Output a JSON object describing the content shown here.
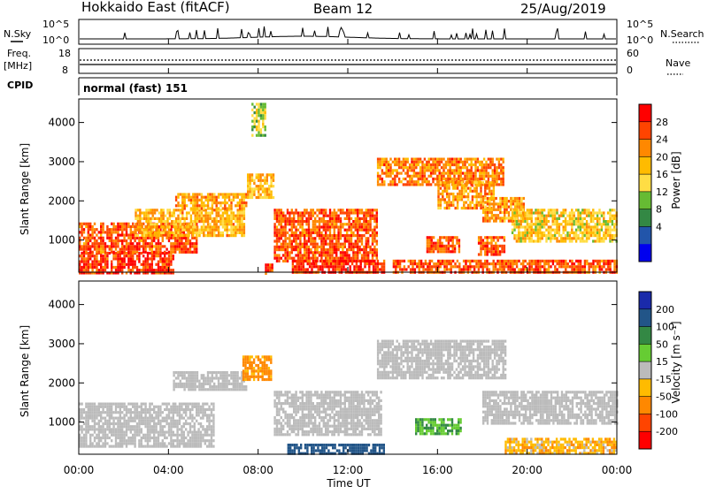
{
  "header": {
    "title": "Hokkaido East (fitACF)",
    "beam": "Beam 12",
    "date": "25/Aug/2019"
  },
  "aux_panels": {
    "nsky_label": "N.Sky",
    "nsky_ticks": [
      "10^5",
      "10^0"
    ],
    "nsky_right_ticks": [
      "10^5",
      "10^0"
    ],
    "nsearch_label": "N.Search",
    "freq_label": "Freq.",
    "freq_unit": "[MHz]",
    "freq_ticks": [
      "18",
      "8"
    ],
    "nave_ticks": [
      "60",
      "0"
    ],
    "nave_label": "Nave",
    "cpid_label": "CPID",
    "cpid_text": "normal (fast) 151"
  },
  "axes": {
    "ylabel": "Slant Range [km]",
    "y_ticks": [
      "4000",
      "3000",
      "2000",
      "1000"
    ],
    "x_ticks": [
      "00:00",
      "04:00",
      "08:00",
      "12:00",
      "16:00",
      "20:00",
      "00:00"
    ],
    "xlabel": "Time UT"
  },
  "power_scale": {
    "label": "Power [dB]",
    "ticks": [
      "28",
      "24",
      "20",
      "16",
      "12",
      "8",
      "4"
    ],
    "colors": [
      "#ff0000",
      "#ff4400",
      "#ff8800",
      "#ffbb00",
      "#ffdd44",
      "#66bb33",
      "#338844",
      "#2255aa",
      "#0000ee"
    ]
  },
  "velocity_scale": {
    "label": "Velocity [m s⁻¹]",
    "ticks": [
      "200",
      "100",
      "50",
      "15",
      "-15",
      "-50",
      "-100",
      "-200"
    ],
    "colors": [
      "#1a2aaa",
      "#225588",
      "#338844",
      "#66cc33",
      "#bbbbbb",
      "#ffbb00",
      "#ff8800",
      "#ff4400",
      "#ff0000"
    ]
  },
  "chart_data": {
    "type": "heatmap",
    "x_range_hours": [
      0,
      24
    ],
    "y_range_km": [
      180,
      4600
    ],
    "nsky_log_range": [
      0,
      5
    ],
    "power_regions": [
      {
        "t0": 0.0,
        "t1": 4.2,
        "r0": 180,
        "r1": 700,
        "value": 28
      },
      {
        "t0": 0.0,
        "t1": 5.3,
        "r0": 700,
        "r1": 1450,
        "value": 26
      },
      {
        "t0": 2.5,
        "t1": 7.4,
        "r0": 1100,
        "r1": 1800,
        "value": 20
      },
      {
        "t0": 4.3,
        "t1": 7.5,
        "r0": 1800,
        "r1": 2200,
        "value": 22
      },
      {
        "t0": 7.5,
        "t1": 8.7,
        "r0": 2100,
        "r1": 2700,
        "value": 20
      },
      {
        "t0": 7.7,
        "t1": 8.3,
        "r0": 3700,
        "r1": 4500,
        "value": 14
      },
      {
        "t0": 8.3,
        "t1": 8.6,
        "r0": 180,
        "r1": 400,
        "value": 28
      },
      {
        "t0": 8.7,
        "t1": 13.3,
        "r0": 500,
        "r1": 1800,
        "value": 26
      },
      {
        "t0": 9.5,
        "t1": 13.6,
        "r0": 180,
        "r1": 500,
        "value": 28
      },
      {
        "t0": 13.3,
        "t1": 18.9,
        "r0": 2400,
        "r1": 3100,
        "value": 24
      },
      {
        "t0": 16.0,
        "t1": 18.5,
        "r0": 1800,
        "r1": 2500,
        "value": 22
      },
      {
        "t0": 18.0,
        "t1": 19.8,
        "r0": 1500,
        "r1": 2100,
        "value": 22
      },
      {
        "t0": 19.3,
        "t1": 24.0,
        "r0": 1000,
        "r1": 1800,
        "value": 18
      },
      {
        "t0": 15.5,
        "t1": 17.0,
        "r0": 700,
        "r1": 1100,
        "value": 26
      },
      {
        "t0": 17.8,
        "t1": 19.0,
        "r0": 600,
        "r1": 1100,
        "value": 26
      },
      {
        "t0": 14.0,
        "t1": 24.0,
        "r0": 180,
        "r1": 500,
        "value": 26
      }
    ],
    "velocity_regions": [
      {
        "t0": 0.0,
        "t1": 6.0,
        "r0": 400,
        "r1": 1500,
        "value": 0
      },
      {
        "t0": 4.2,
        "t1": 7.5,
        "r0": 1800,
        "r1": 2300,
        "value": 0
      },
      {
        "t0": 7.3,
        "t1": 8.6,
        "r0": 2100,
        "r1": 2700,
        "value": -40
      },
      {
        "t0": 8.7,
        "t1": 13.5,
        "r0": 700,
        "r1": 1800,
        "value": 0
      },
      {
        "t0": 9.3,
        "t1": 13.6,
        "r0": 200,
        "r1": 450,
        "value": 120
      },
      {
        "t0": 13.3,
        "t1": 19.0,
        "r0": 2100,
        "r1": 3100,
        "value": 0
      },
      {
        "t0": 15.0,
        "t1": 17.0,
        "r0": 700,
        "r1": 1100,
        "value": 30
      },
      {
        "t0": 18.0,
        "t1": 24.0,
        "r0": 1000,
        "r1": 1800,
        "value": 0
      },
      {
        "t0": 19.0,
        "t1": 24.0,
        "r0": 180,
        "r1": 600,
        "value": -25
      }
    ]
  }
}
